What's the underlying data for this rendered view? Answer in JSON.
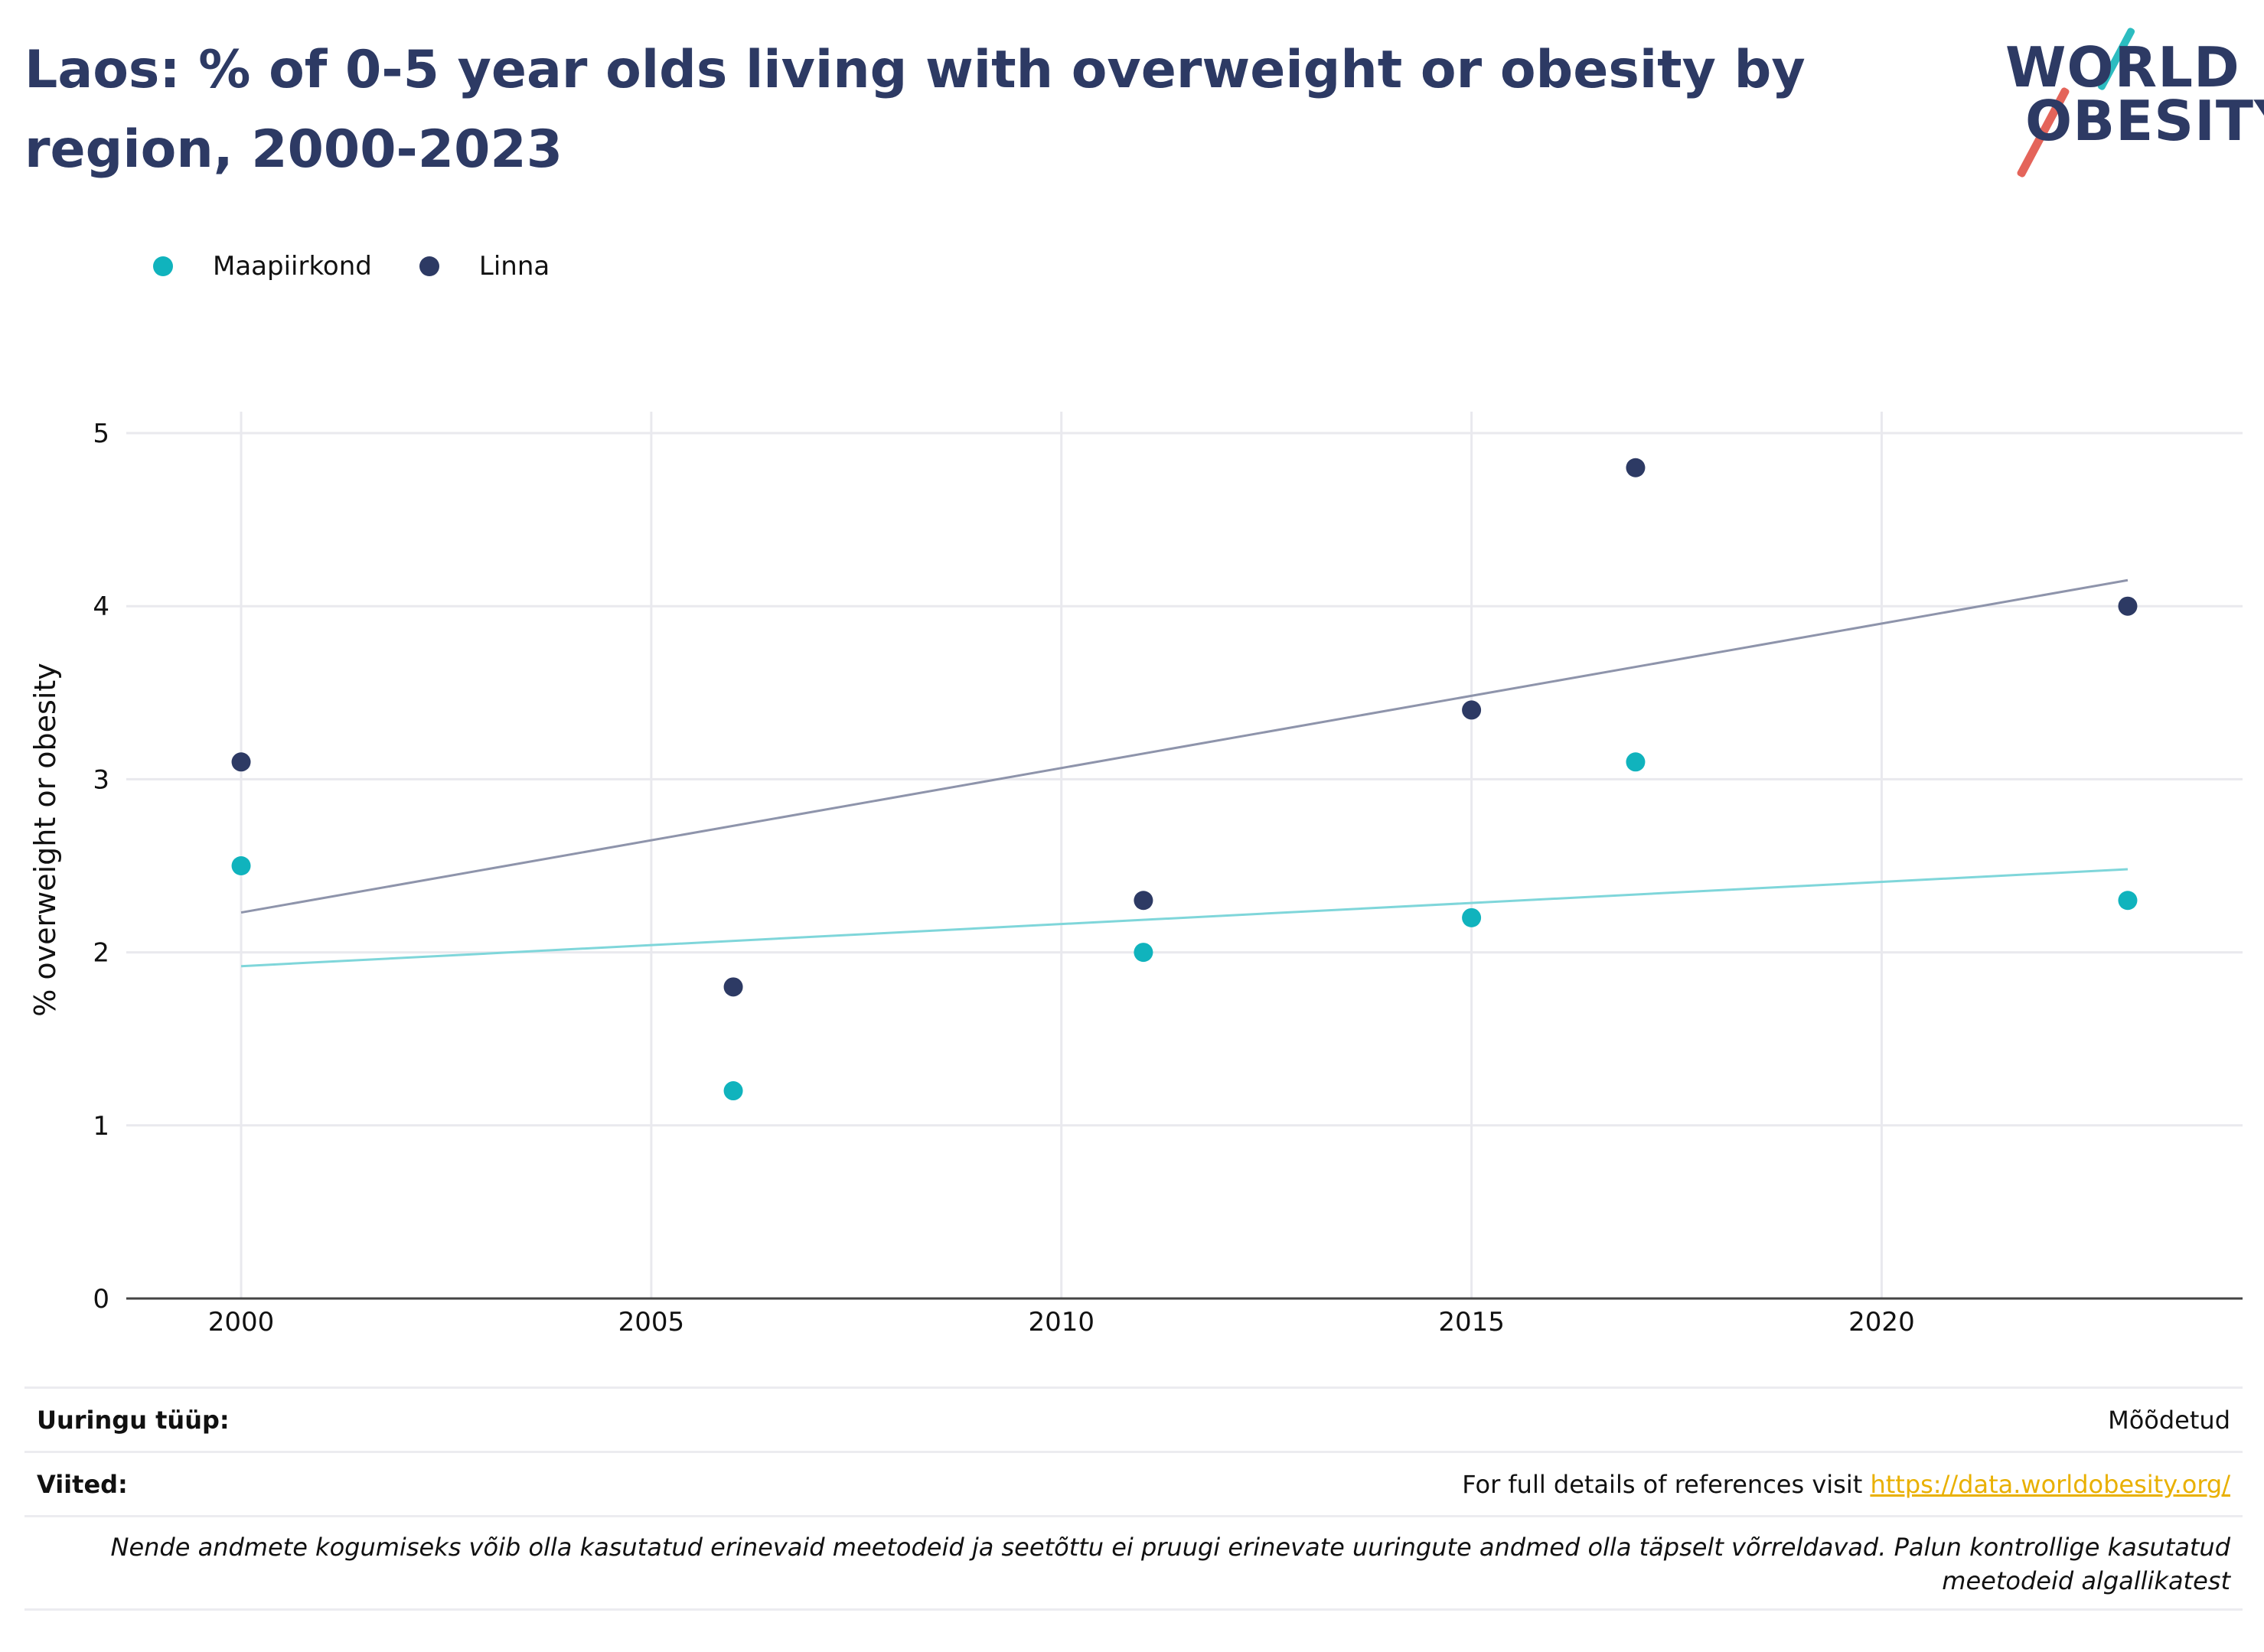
{
  "title": "Laos: % of 0-5 year olds living with overweight or obesity by region, 2000-2023",
  "logo": {
    "line1": "WORLD",
    "line2": "OBESITY"
  },
  "colors": {
    "rural": "#10b3bd",
    "urban": "#2d3a64",
    "rural_trend": "#7fd6da",
    "urban_trend": "#8e94ab",
    "grid": "#e9e9ee",
    "axis": "#444444",
    "link": "#e9b000"
  },
  "chart_data": {
    "type": "scatter",
    "ylabel": "% overweight or obesity",
    "xlabel": "",
    "xlim": [
      1998.6,
      2024.4
    ],
    "ylim": [
      0,
      5
    ],
    "x_ticks": [
      2000,
      2005,
      2010,
      2015,
      2020
    ],
    "y_ticks": [
      0,
      1,
      2,
      3,
      4,
      5
    ],
    "legend_position": "top-left",
    "grid": true,
    "series": [
      {
        "name": "Maapiirkond",
        "color": "#10b3bd",
        "x": [
          2000,
          2006,
          2011,
          2015,
          2017,
          2023
        ],
        "y": [
          2.5,
          1.2,
          2.0,
          2.2,
          3.1,
          2.3
        ],
        "trend": {
          "x": [
            2000,
            2023
          ],
          "y": [
            1.92,
            2.48
          ],
          "color": "#7fd6da"
        }
      },
      {
        "name": "Linna",
        "color": "#2d3a64",
        "x": [
          2000,
          2006,
          2011,
          2015,
          2017,
          2023
        ],
        "y": [
          3.1,
          1.8,
          2.3,
          3.4,
          4.8,
          4.0
        ],
        "trend": {
          "x": [
            2000,
            2023
          ],
          "y": [
            2.23,
            4.15
          ],
          "color": "#8e94ab"
        }
      }
    ]
  },
  "footer": {
    "survey_label": "Uuringu tüüp:",
    "survey_value": "Mõõdetud",
    "refs_label": "Viited:",
    "refs_text": "For full details of references visit ",
    "refs_link": "https://data.worldobesity.org/",
    "note": "Nende andmete kogumiseks võib olla kasutatud erinevaid meetodeid ja seetõttu ei pruugi erinevate uuringute andmed olla täpselt võrreldavad. Palun kontrollige kasutatud meetodeid algallikatest"
  }
}
